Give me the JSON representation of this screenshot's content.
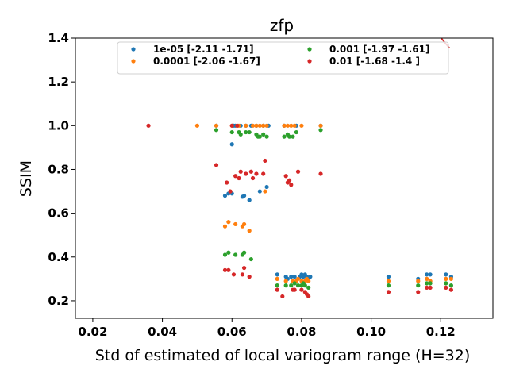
{
  "chart_data": {
    "type": "scatter",
    "title": "zfp",
    "xlabel": "Std of estimated of local variogram range (H=32)",
    "ylabel": "SSIM",
    "xlim": [
      0.015,
      0.135
    ],
    "ylim": [
      0.12,
      1.4
    ],
    "xticks": [
      "0.02",
      "0.04",
      "0.06",
      "0.08",
      "0.10",
      "0.12"
    ],
    "xtick_values": [
      0.02,
      0.04,
      0.06,
      0.08,
      0.1,
      0.12
    ],
    "yticks": [
      "0.2",
      "0.4",
      "0.6",
      "0.8",
      "1.0",
      "1.2",
      "1.4"
    ],
    "ytick_values": [
      0.2,
      0.4,
      0.6,
      0.8,
      1.0,
      1.2,
      1.4
    ],
    "grid": false,
    "legend_position": "top",
    "series": [
      {
        "name": "1e-05 [-2.11 -1.71]",
        "color": "#1f77b4",
        "fit": {
          "a": -2.11,
          "b": -1.71,
          "x_range": [
            0.032,
            0.1225
          ]
        },
        "points": [
          [
            0.0555,
            1.0
          ],
          [
            0.058,
            0.68
          ],
          [
            0.059,
            0.69
          ],
          [
            0.06,
            0.915
          ],
          [
            0.06,
            0.69
          ],
          [
            0.0605,
            1.0
          ],
          [
            0.061,
            1.0
          ],
          [
            0.0625,
            1.0
          ],
          [
            0.063,
            0.675
          ],
          [
            0.0635,
            0.68
          ],
          [
            0.064,
            1.0
          ],
          [
            0.065,
            0.66
          ],
          [
            0.0655,
            1.0
          ],
          [
            0.067,
            1.0
          ],
          [
            0.068,
            0.7
          ],
          [
            0.069,
            1.0
          ],
          [
            0.07,
            0.72
          ],
          [
            0.0705,
            1.0
          ],
          [
            0.073,
            0.32
          ],
          [
            0.075,
            1.0
          ],
          [
            0.0755,
            0.31
          ],
          [
            0.076,
            0.3
          ],
          [
            0.077,
            0.31
          ],
          [
            0.078,
            0.31
          ],
          [
            0.0785,
            1.0
          ],
          [
            0.0795,
            0.31
          ],
          [
            0.08,
            0.32
          ],
          [
            0.0805,
            0.31
          ],
          [
            0.081,
            0.32
          ],
          [
            0.0815,
            0.31
          ],
          [
            0.082,
            0.3
          ],
          [
            0.0825,
            0.31
          ],
          [
            0.0855,
            1.0
          ],
          [
            0.105,
            0.31
          ],
          [
            0.1135,
            0.3
          ],
          [
            0.116,
            0.32
          ],
          [
            0.117,
            0.32
          ],
          [
            0.1215,
            0.32
          ],
          [
            0.123,
            0.31
          ]
        ]
      },
      {
        "name": "0.0001 [-2.06 -1.67]",
        "color": "#ff7f0e",
        "fit": {
          "a": -2.06,
          "b": -1.67,
          "x_range": [
            0.032,
            0.1225
          ]
        },
        "points": [
          [
            0.05,
            1.0
          ],
          [
            0.0555,
            1.0
          ],
          [
            0.058,
            0.54
          ],
          [
            0.059,
            0.56
          ],
          [
            0.0595,
            0.7
          ],
          [
            0.06,
            1.0
          ],
          [
            0.061,
            0.55
          ],
          [
            0.0615,
            1.0
          ],
          [
            0.062,
            1.0
          ],
          [
            0.063,
            0.54
          ],
          [
            0.0635,
            0.55
          ],
          [
            0.064,
            1.0
          ],
          [
            0.065,
            0.52
          ],
          [
            0.066,
            1.0
          ],
          [
            0.067,
            1.0
          ],
          [
            0.068,
            1.0
          ],
          [
            0.069,
            1.0
          ],
          [
            0.0695,
            0.7
          ],
          [
            0.07,
            1.0
          ],
          [
            0.073,
            0.3
          ],
          [
            0.075,
            1.0
          ],
          [
            0.0755,
            0.29
          ],
          [
            0.076,
            1.0
          ],
          [
            0.077,
            1.0
          ],
          [
            0.0775,
            0.29
          ],
          [
            0.078,
            1.0
          ],
          [
            0.0785,
            0.29
          ],
          [
            0.079,
            0.3
          ],
          [
            0.08,
            1.0
          ],
          [
            0.08,
            0.29
          ],
          [
            0.081,
            0.29
          ],
          [
            0.0815,
            0.3
          ],
          [
            0.082,
            0.29
          ],
          [
            0.0855,
            1.0
          ],
          [
            0.105,
            0.29
          ],
          [
            0.1135,
            0.29
          ],
          [
            0.116,
            0.3
          ],
          [
            0.117,
            0.29
          ],
          [
            0.1215,
            0.3
          ],
          [
            0.123,
            0.3
          ]
        ]
      },
      {
        "name": "0.001 [-1.97 -1.61]",
        "color": "#2ca02c",
        "fit": {
          "a": -1.97,
          "b": -1.61,
          "x_range": [
            0.032,
            0.1225
          ]
        },
        "points": [
          [
            0.0555,
            0.98
          ],
          [
            0.058,
            0.41
          ],
          [
            0.059,
            0.42
          ],
          [
            0.06,
            0.97
          ],
          [
            0.061,
            0.41
          ],
          [
            0.062,
            0.97
          ],
          [
            0.0625,
            0.96
          ],
          [
            0.063,
            0.41
          ],
          [
            0.0635,
            0.42
          ],
          [
            0.064,
            0.97
          ],
          [
            0.065,
            0.97
          ],
          [
            0.0655,
            0.39
          ],
          [
            0.067,
            0.96
          ],
          [
            0.0675,
            0.95
          ],
          [
            0.068,
            0.95
          ],
          [
            0.069,
            0.96
          ],
          [
            0.07,
            0.95
          ],
          [
            0.073,
            0.27
          ],
          [
            0.075,
            0.95
          ],
          [
            0.0755,
            0.27
          ],
          [
            0.076,
            0.96
          ],
          [
            0.0765,
            0.95
          ],
          [
            0.077,
            0.27
          ],
          [
            0.0775,
            0.95
          ],
          [
            0.078,
            0.28
          ],
          [
            0.0785,
            0.97
          ],
          [
            0.079,
            0.27
          ],
          [
            0.08,
            0.27
          ],
          [
            0.0805,
            0.28
          ],
          [
            0.081,
            0.27
          ],
          [
            0.082,
            0.26
          ],
          [
            0.0855,
            0.98
          ],
          [
            0.105,
            0.27
          ],
          [
            0.1135,
            0.27
          ],
          [
            0.116,
            0.28
          ],
          [
            0.117,
            0.28
          ],
          [
            0.1215,
            0.28
          ],
          [
            0.123,
            0.27
          ]
        ]
      },
      {
        "name": "0.01 [-1.68 -1.4 ]",
        "color": "#d62728",
        "fit": {
          "a": -1.68,
          "b": -1.4,
          "x_range": [
            0.032,
            0.1225
          ]
        },
        "points": [
          [
            0.036,
            1.0
          ],
          [
            0.0555,
            0.82
          ],
          [
            0.058,
            0.34
          ],
          [
            0.0585,
            0.74
          ],
          [
            0.059,
            0.34
          ],
          [
            0.0595,
            0.7
          ],
          [
            0.06,
            1.0
          ],
          [
            0.0605,
            0.32
          ],
          [
            0.061,
            0.77
          ],
          [
            0.0615,
            1.0
          ],
          [
            0.062,
            0.76
          ],
          [
            0.0625,
            0.79
          ],
          [
            0.063,
            0.32
          ],
          [
            0.0635,
            0.35
          ],
          [
            0.064,
            0.78
          ],
          [
            0.065,
            0.31
          ],
          [
            0.0655,
            0.79
          ],
          [
            0.066,
            0.76
          ],
          [
            0.067,
            0.78
          ],
          [
            0.069,
            0.78
          ],
          [
            0.0695,
            0.84
          ],
          [
            0.073,
            0.25
          ],
          [
            0.0745,
            0.22
          ],
          [
            0.0755,
            0.77
          ],
          [
            0.076,
            0.74
          ],
          [
            0.0765,
            0.75
          ],
          [
            0.077,
            0.73
          ],
          [
            0.0775,
            0.25
          ],
          [
            0.078,
            0.25
          ],
          [
            0.079,
            0.79
          ],
          [
            0.08,
            0.25
          ],
          [
            0.081,
            0.24
          ],
          [
            0.0815,
            0.23
          ],
          [
            0.082,
            0.22
          ],
          [
            0.0855,
            0.78
          ],
          [
            0.105,
            0.24
          ],
          [
            0.1135,
            0.24
          ],
          [
            0.116,
            0.26
          ],
          [
            0.117,
            0.26
          ],
          [
            0.1215,
            0.26
          ],
          [
            0.123,
            0.25
          ]
        ]
      }
    ]
  }
}
